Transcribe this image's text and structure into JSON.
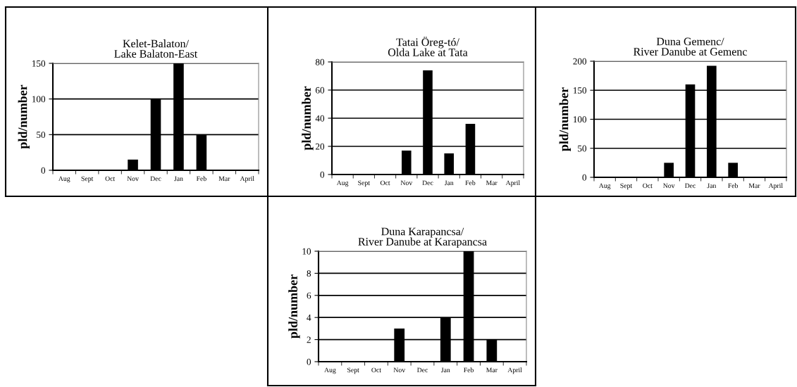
{
  "chart_data": [
    {
      "type": "bar",
      "title": "Kelet-Balaton/\nLake Balaton-East",
      "ylabel": "pld/number",
      "categories": [
        "Aug",
        "Sept",
        "Oct",
        "Nov",
        "Dec",
        "Jan",
        "Feb",
        "Mar",
        "April"
      ],
      "values": [
        0,
        0,
        0,
        15,
        100,
        150,
        50,
        0,
        0
      ],
      "color": "#000000",
      "ylim": [
        0,
        150
      ],
      "yticks": [
        0,
        50,
        100,
        150
      ],
      "grid": "y",
      "legend": false
    },
    {
      "type": "bar",
      "title": "Tatai Öreg-tó/\nOlda Lake at Tata",
      "ylabel": "pld/number",
      "categories": [
        "Aug",
        "Sept",
        "Oct",
        "Nov",
        "Dec",
        "Jan",
        "Feb",
        "Mar",
        "April"
      ],
      "values": [
        0,
        0,
        0,
        17,
        74,
        15,
        36,
        0,
        0
      ],
      "color": "#000000",
      "ylim": [
        0,
        80
      ],
      "yticks": [
        0,
        20,
        40,
        60,
        80
      ],
      "grid": "y",
      "legend": false
    },
    {
      "type": "bar",
      "title": "Duna Gemenc/\nRiver Danube at Gemenc",
      "ylabel": "pld/number",
      "categories": [
        "Aug",
        "Sept",
        "Oct",
        "Nov",
        "Dec",
        "Jan",
        "Feb",
        "Mar",
        "April"
      ],
      "values": [
        0,
        0,
        0,
        25,
        160,
        192,
        25,
        0,
        0
      ],
      "color": "#000000",
      "ylim": [
        0,
        200
      ],
      "yticks": [
        0,
        50,
        100,
        150,
        200
      ],
      "grid": "y",
      "legend": false
    },
    {
      "type": "bar",
      "title": "Duna Karapancsa/\nRiver Danube at Karapancsa",
      "ylabel": "pld/number",
      "categories": [
        "Aug",
        "Sept",
        "Oct",
        "Nov",
        "Dec",
        "Jan",
        "Feb",
        "Mar",
        "April"
      ],
      "values": [
        0,
        0,
        0,
        3,
        0,
        4,
        10,
        2,
        0
      ],
      "color": "#000000",
      "ylim": [
        0,
        10
      ],
      "yticks": [
        0,
        2,
        4,
        6,
        8,
        10
      ],
      "grid": "y",
      "legend": false
    }
  ]
}
